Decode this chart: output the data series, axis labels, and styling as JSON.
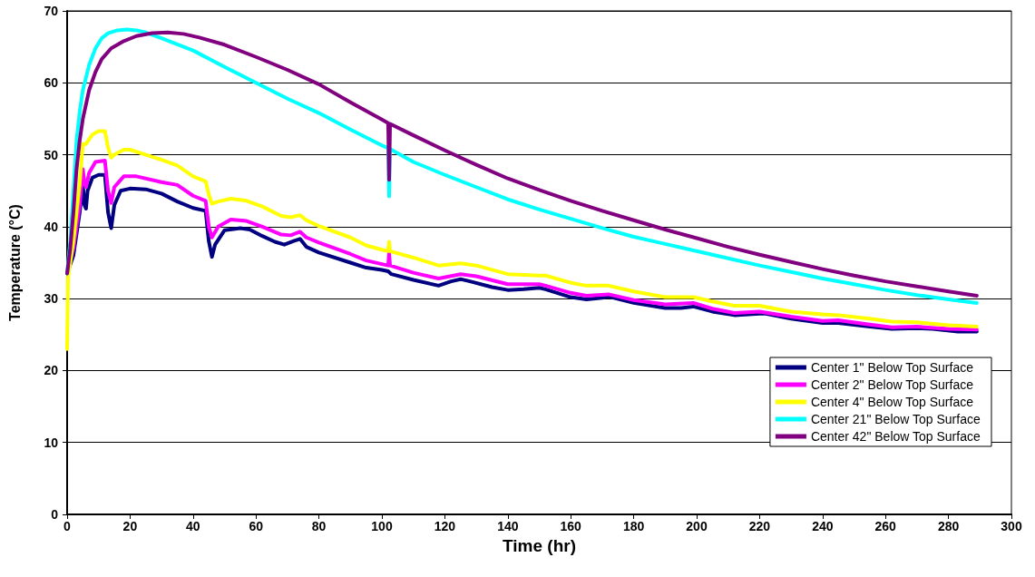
{
  "chart_data": {
    "type": "line",
    "xlabel": "Time (hr)",
    "ylabel": "Temperature (°C)",
    "xlim": [
      0,
      300
    ],
    "xticks": [
      0,
      20,
      40,
      60,
      80,
      100,
      120,
      140,
      160,
      180,
      200,
      220,
      240,
      260,
      280,
      300
    ],
    "ylim": [
      0,
      70
    ],
    "yticks": [
      0,
      10,
      20,
      30,
      40,
      50,
      60,
      70
    ],
    "grid": "y",
    "legend": "bottom right",
    "marker": "none",
    "line_style": "solid",
    "series": [
      {
        "name": "Center 1\" Below Top Surface",
        "color": "#000080",
        "x": [
          0,
          2,
          4,
          5,
          5.5,
          6,
          6.5,
          8,
          10,
          12,
          13,
          14,
          15,
          17,
          20,
          25,
          30,
          35,
          40,
          44,
          45,
          46,
          47,
          50,
          55,
          58,
          62,
          66,
          69,
          72,
          74,
          76,
          80,
          90,
          95,
          100,
          102,
          103,
          110,
          118,
          122,
          125,
          128,
          135,
          140,
          145,
          150,
          152,
          160,
          165,
          170,
          172,
          180,
          190,
          195,
          199,
          205,
          212,
          220,
          222,
          230,
          240,
          245,
          255,
          262,
          270,
          275,
          283,
          289
        ],
        "values": [
          33.5,
          36,
          42,
          46,
          43,
          42.5,
          45,
          46.8,
          47.2,
          47.2,
          42,
          39.8,
          43,
          45,
          45.3,
          45.2,
          44.6,
          43.5,
          42.6,
          42.2,
          38,
          35.8,
          37.5,
          39.5,
          39.8,
          39.6,
          38.7,
          37.9,
          37.5,
          38,
          38.3,
          37.2,
          36.4,
          35,
          34.3,
          34,
          33.8,
          33.4,
          32.6,
          31.8,
          32.4,
          32.7,
          32.4,
          31.6,
          31.2,
          31.3,
          31.5,
          31.3,
          30.2,
          29.9,
          30.1,
          30.3,
          29.4,
          28.7,
          28.7,
          28.9,
          28.2,
          27.7,
          27.9,
          27.9,
          27.2,
          26.6,
          26.6,
          26.1,
          25.8,
          25.9,
          25.8,
          25.4,
          25.4
        ]
      },
      {
        "name": "Center 2\" Below Top Surface",
        "color": "#ff00ff",
        "x": [
          0,
          2,
          4,
          5,
          5.5,
          6,
          7,
          9,
          12,
          13,
          14,
          15,
          18,
          22,
          30,
          35,
          40,
          44,
          45,
          46,
          48,
          52,
          57,
          62,
          68,
          71,
          74,
          76,
          80,
          90,
          95,
          100,
          102,
          102.3,
          102.6,
          110,
          118,
          125,
          130,
          140,
          150,
          152,
          160,
          165,
          172,
          180,
          190,
          199,
          205,
          212,
          220,
          230,
          240,
          245,
          255,
          262,
          270,
          280,
          289
        ],
        "values": [
          33.5,
          37,
          43,
          48,
          46,
          45.5,
          47.5,
          49,
          49.2,
          45,
          43.3,
          45.5,
          47,
          47,
          46.2,
          45.8,
          44.3,
          43.6,
          40,
          38.5,
          40,
          41,
          40.8,
          40,
          38.9,
          38.8,
          39.3,
          38.5,
          37.8,
          36.2,
          35.3,
          34.8,
          34.6,
          36.3,
          34.6,
          33.6,
          32.8,
          33.4,
          33.1,
          32,
          32,
          31.8,
          30.8,
          30.4,
          30.6,
          29.8,
          29.2,
          29.4,
          28.6,
          28,
          28.2,
          27.5,
          26.9,
          27,
          26.4,
          26,
          26.1,
          25.8,
          25.7
        ]
      },
      {
        "name": "Center 4\" Below Top Surface",
        "color": "#ffff00",
        "x": [
          0,
          0.3,
          2,
          4,
          5,
          6,
          8,
          10,
          12,
          13,
          14,
          15,
          18,
          20,
          25,
          30,
          35,
          40,
          44,
          45,
          46,
          48,
          52,
          57,
          62,
          68,
          71,
          74,
          76,
          80,
          90,
          95,
          100,
          102,
          102.3,
          102.6,
          110,
          118,
          125,
          130,
          140,
          150,
          152,
          160,
          165,
          172,
          180,
          190,
          199,
          205,
          212,
          220,
          230,
          240,
          245,
          255,
          262,
          270,
          280,
          289
        ],
        "values": [
          23,
          33,
          38,
          46,
          51.5,
          51.5,
          52.8,
          53.3,
          53.3,
          51,
          49.6,
          50,
          50.7,
          50.7,
          50,
          49.3,
          48.5,
          47,
          46.3,
          44.5,
          43.2,
          43.5,
          43.9,
          43.6,
          42.8,
          41.5,
          41.3,
          41.6,
          40.9,
          40.1,
          38.5,
          37.4,
          36.8,
          36.6,
          37.9,
          36.6,
          35.7,
          34.6,
          34.9,
          34.6,
          33.4,
          33.2,
          33.2,
          32.2,
          31.8,
          31.8,
          31,
          30.2,
          30.2,
          29.6,
          29,
          29,
          28.2,
          27.8,
          27.7,
          27.2,
          26.8,
          26.7,
          26.3,
          26.1
        ]
      },
      {
        "name": "Center 21\" Below Top Surface",
        "color": "#00ffff",
        "x": [
          0,
          1,
          2,
          3,
          4,
          5,
          7,
          9,
          11,
          13,
          16,
          19,
          22,
          25,
          30,
          40,
          50,
          60,
          70,
          80,
          90,
          100,
          102,
          102.3,
          102.6,
          110,
          120,
          130,
          140,
          150,
          160,
          170,
          180,
          190,
          200,
          210,
          220,
          230,
          240,
          250,
          260,
          270,
          280,
          289
        ],
        "values": [
          33.5,
          38,
          45,
          52,
          56,
          59,
          62.5,
          64.8,
          66.2,
          66.9,
          67.3,
          67.4,
          67.3,
          67,
          66.2,
          64.5,
          62.2,
          60,
          57.8,
          55.8,
          53.5,
          51.3,
          50.9,
          44.2,
          50.8,
          49,
          47.2,
          45.5,
          43.8,
          42.4,
          41.1,
          39.8,
          38.6,
          37.6,
          36.6,
          35.6,
          34.6,
          33.7,
          32.8,
          32,
          31.2,
          30.5,
          29.9,
          29.4
        ]
      },
      {
        "name": "Center 42\" Below Top Surface",
        "color": "#800080",
        "x": [
          0,
          1,
          2,
          3,
          4,
          5,
          7,
          9,
          11,
          14,
          18,
          22,
          27,
          32,
          37,
          42,
          50,
          60,
          70,
          80,
          90,
          100,
          102,
          102.3,
          102.6,
          110,
          120,
          130,
          140,
          150,
          160,
          170,
          180,
          190,
          200,
          210,
          220,
          230,
          240,
          250,
          260,
          270,
          280,
          289
        ],
        "values": [
          33.5,
          37,
          42,
          48,
          52,
          55,
          59,
          61.5,
          63.3,
          64.8,
          65.8,
          66.5,
          66.9,
          67,
          66.8,
          66.3,
          65.3,
          63.6,
          61.8,
          59.8,
          57.3,
          54.9,
          54.4,
          46.5,
          54.3,
          52.7,
          50.6,
          48.6,
          46.7,
          45.1,
          43.6,
          42.2,
          40.9,
          39.6,
          38.4,
          37.2,
          36.1,
          35.1,
          34.1,
          33.2,
          32.4,
          31.7,
          31,
          30.4
        ]
      }
    ]
  }
}
